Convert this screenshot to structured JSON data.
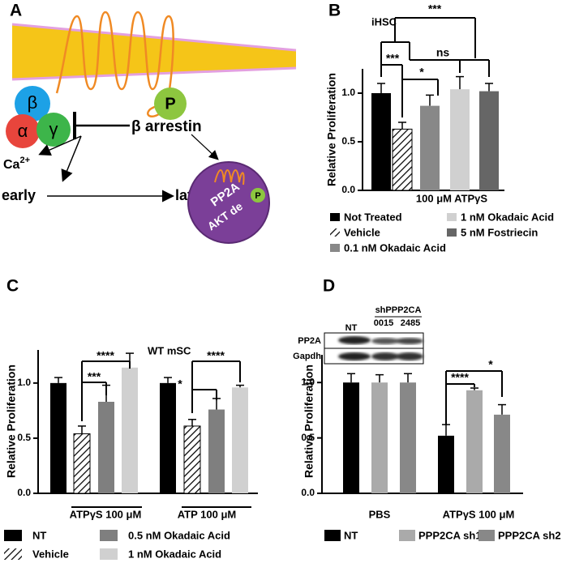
{
  "diagram": {
    "label": "A",
    "beta": "β",
    "alpha": "α",
    "gamma": "γ",
    "phospho": "P",
    "arrestin": "β arrestin",
    "calcium": "Ca",
    "calcium_charge": "2+",
    "early": "early",
    "later": "later",
    "pp2a": "PP2A",
    "akt": "AKT de",
    "phospho_small": "P"
  },
  "chart_data": [
    {
      "type": "bar",
      "label": "B",
      "title": "iHSC",
      "ylabel": "Relative Proliferation",
      "treatment_label": "100 μM ATPγS",
      "categories": [
        null
      ],
      "ylim": [
        0,
        1.25
      ],
      "yticks": [
        {
          "value": 0,
          "label": "0.0"
        },
        {
          "value": 0.5,
          "label": "0.5"
        },
        {
          "value": 1,
          "label": "1.0"
        }
      ],
      "series": [
        {
          "name": "Not Treated",
          "color": "#000000",
          "values": [
            1.0
          ],
          "errors": [
            0.1
          ]
        },
        {
          "name": "Vehicle",
          "color": "#ffffff",
          "hatch": true,
          "values": [
            0.63
          ],
          "errors": [
            0.07
          ]
        },
        {
          "name": "0.1 nM Okadaic Acid",
          "color": "#888888",
          "values": [
            0.87
          ],
          "errors": [
            0.11
          ]
        },
        {
          "name": "1 nM Okadaic Acid",
          "color": "#d0d0d0",
          "values": [
            1.04
          ],
          "errors": [
            0.13
          ]
        },
        {
          "name": "5 nM Fostriecin",
          "color": "#666666",
          "values": [
            1.02
          ],
          "errors": [
            0.08
          ]
        }
      ],
      "significance": [
        "***",
        "ns",
        "***",
        "*"
      ]
    },
    {
      "type": "bar",
      "label": "C",
      "title": "WT mSC",
      "ylabel": "Relative Proliferation",
      "categories": [
        "ATPγS 100 μM",
        "ATP 100 μM"
      ],
      "ylim": [
        0,
        1.3
      ],
      "yticks": [
        {
          "value": 0,
          "label": "0.0"
        },
        {
          "value": 0.5,
          "label": "0.5"
        },
        {
          "value": 1,
          "label": "1.0"
        }
      ],
      "series": [
        {
          "name": "NT",
          "color": "#000000",
          "values": [
            1.0,
            1.0
          ],
          "errors": [
            0.05,
            0.05
          ]
        },
        {
          "name": "Vehicle",
          "color": "#ffffff",
          "hatch": true,
          "values": [
            0.54,
            0.61
          ],
          "errors": [
            0.07,
            0.06
          ]
        },
        {
          "name": "0.5 nM Okadaic Acid",
          "color": "#7f7f7f",
          "values": [
            0.83,
            0.76
          ],
          "errors": [
            0.15,
            0.1
          ]
        },
        {
          "name": "1 nM Okadaic Acid",
          "color": "#d0d0d0",
          "values": [
            1.14,
            0.96
          ],
          "errors": [
            0.13,
            0.02
          ]
        }
      ],
      "significance": [
        "****",
        "***",
        "****",
        "*"
      ]
    },
    {
      "type": "bar",
      "label": "D",
      "ylabel": "Relative Proliferation",
      "categories": [
        "PBS",
        "ATPγS 100 μM"
      ],
      "ylim": [
        0,
        1.25
      ],
      "yticks": [
        {
          "value": 0,
          "label": "0.0"
        },
        {
          "value": 0.5,
          "label": "0.5"
        },
        {
          "value": 1,
          "label": "1.0"
        }
      ],
      "series": [
        {
          "name": "NT",
          "color": "#000000",
          "values": [
            1.0,
            0.52
          ],
          "errors": [
            0.08,
            0.1
          ]
        },
        {
          "name": "PPP2CA sh1",
          "color": "#aaaaaa",
          "values": [
            1.0,
            0.93
          ],
          "errors": [
            0.07,
            0.02
          ]
        },
        {
          "name": "PPP2CA sh2",
          "color": "#888888",
          "values": [
            1.0,
            0.71
          ],
          "errors": [
            0.08,
            0.09
          ]
        }
      ],
      "significance": [
        "*",
        "****"
      ],
      "blot": {
        "group": "shPPP2CA",
        "lanes": [
          "NT",
          "0015",
          "2485"
        ],
        "rows": [
          "PP2A",
          "Gapdh"
        ]
      }
    }
  ]
}
